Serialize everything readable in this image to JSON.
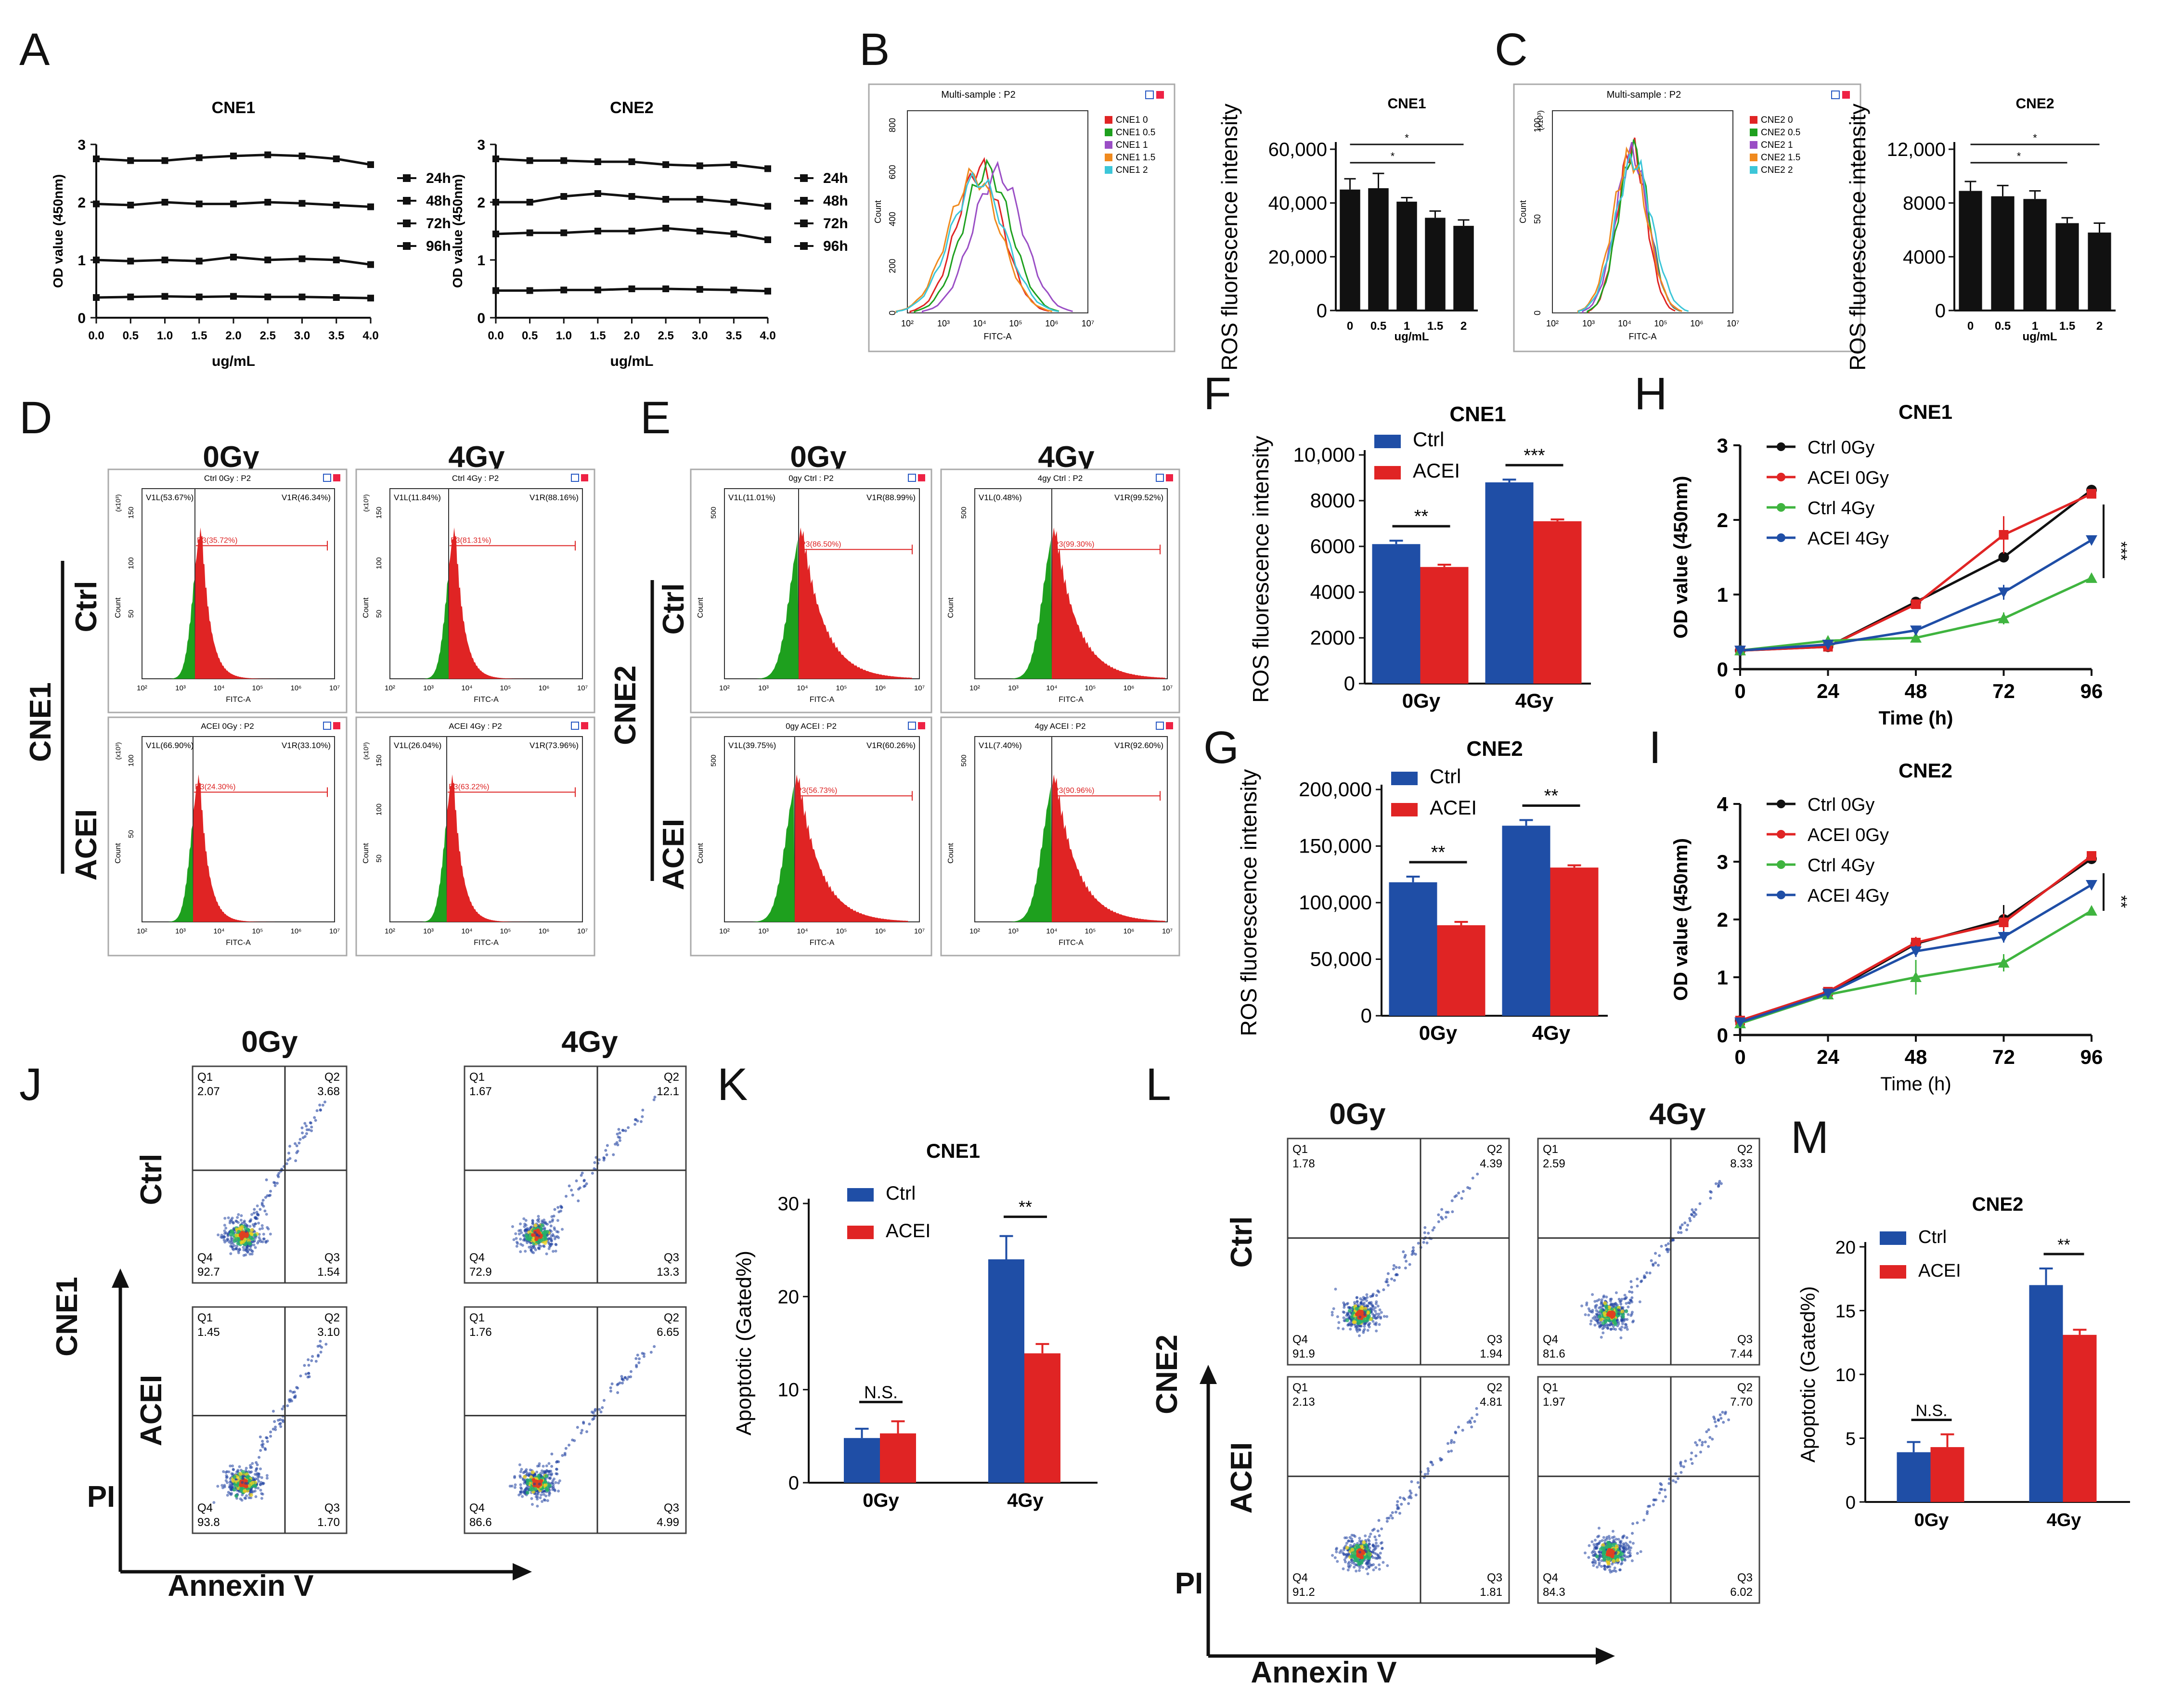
{
  "panel_letters": [
    "A",
    "B",
    "C",
    "D",
    "E",
    "F",
    "G",
    "H",
    "I",
    "J",
    "K",
    "L",
    "M"
  ],
  "colors": {
    "ctrl": "#1f4ea6",
    "acei": "#e02424",
    "gfp": "#1ea01e",
    "dens": "#1e3fa0"
  },
  "a": {
    "xvals": [
      0.0,
      0.5,
      1.0,
      1.5,
      2.0,
      2.5,
      3.0,
      3.5,
      4.0
    ],
    "xticks": [
      "0.0",
      "0.5",
      "1.0",
      "1.5",
      "2.0",
      "2.5",
      "3.0",
      "3.5",
      "4.0"
    ],
    "yticks": [
      "0",
      "1",
      "2",
      "3"
    ],
    "xlabel": "ug/mL",
    "ylabel": "OD value (450nm)",
    "legend": [
      "24h",
      "48h",
      "72h",
      "96h"
    ],
    "titles": [
      "CNE1",
      "CNE2"
    ]
  },
  "bc": {
    "hist_title": "Multi-sample : P2",
    "hist_x": "FITC-A",
    "hist_y": "Count",
    "hist_xt": [
      "10²",
      "10³",
      "10⁴",
      "10⁵",
      "10⁶",
      "10⁷"
    ],
    "b_legend": [
      "CNE1 0",
      "CNE1 0.5",
      "CNE1 1",
      "CNE1 1.5",
      "CNE1 2"
    ],
    "c_legend": [
      "CNE2 0",
      "CNE2 0.5",
      "CNE2 1",
      "CNE2 1.5",
      "CNE2 2"
    ],
    "b_hist_y": [
      "800",
      "600",
      "400",
      "200",
      "0"
    ],
    "c_hist_y": [
      "100",
      "50",
      "0"
    ],
    "c_mult": "(x10³)",
    "bar_ylabel": "ROS fluorescence intensity",
    "bar_xlabel": "ug/mL",
    "bar_x": [
      "0",
      "0.5",
      "1",
      "1.5",
      "2"
    ]
  },
  "de": {
    "cols": [
      "0Gy",
      "4Gy"
    ],
    "rows": [
      "Ctrl",
      "ACEI"
    ],
    "cell_d": "CNE1",
    "cell_e": "CNE2",
    "x_ticks": [
      "10²",
      "10³",
      "10⁴",
      "10⁵",
      "10⁶",
      "10⁷"
    ],
    "xlab": "FITC-A",
    "ylab": "Count",
    "d_panels": [
      {
        "title": "Ctrl 0Gy : P2",
        "v1l": "V1L(53.67%)",
        "v1r": "V1R(46.34%)",
        "p3": "P3(35.72%)",
        "yt": [
          "150",
          "100",
          "50"
        ],
        "mult": "(x10³)"
      },
      {
        "title": "Ctrl 4Gy : P2",
        "v1l": "V1L(11.84%)",
        "v1r": "V1R(88.16%)",
        "p3": "P3(81.31%)",
        "yt": [
          "150",
          "100",
          "50"
        ],
        "mult": "(x10³)"
      },
      {
        "title": "ACEI 0Gy : P2",
        "v1l": "V1L(66.90%)",
        "v1r": "V1R(33.10%)",
        "p3": "P3(24.30%)",
        "yt": [
          "100",
          "50"
        ],
        "mult": "(x10³)"
      },
      {
        "title": "ACEI 4Gy : P2",
        "v1l": "V1L(26.04%)",
        "v1r": "V1R(73.96%)",
        "p3": "P3(63.22%)",
        "yt": [
          "150",
          "100",
          "50"
        ],
        "mult": "(x10³)"
      }
    ],
    "e_panels": [
      {
        "title": "0gy Ctrl : P2",
        "v1l": "V1L(11.01%)",
        "v1r": "V1R(88.99%)",
        "p3": "P3(86.50%)",
        "yt": [
          "500"
        ],
        "mult": ""
      },
      {
        "title": "4gy Ctrl : P2",
        "v1l": "V1L(0.48%)",
        "v1r": "V1R(99.52%)",
        "p3": "P3(99.30%)",
        "yt": [
          "500"
        ],
        "mult": ""
      },
      {
        "title": "0gy ACEI : P2",
        "v1l": "V1L(39.75%)",
        "v1r": "V1R(60.26%)",
        "p3": "P3(56.73%)",
        "yt": [
          "500"
        ],
        "mult": ""
      },
      {
        "title": "4gy ACEI : P2",
        "v1l": "V1L(7.40%)",
        "v1r": "V1R(92.60%)",
        "p3": "P3(90.96%)",
        "yt": [
          "500"
        ],
        "mult": ""
      }
    ]
  },
  "fg": {
    "legend": [
      "Ctrl",
      "ACEI"
    ],
    "xcat": [
      "0Gy",
      "4Gy"
    ],
    "ylabel": "ROS fluorescence intensity"
  },
  "hi": {
    "legend": [
      "Ctrl 0Gy",
      "ACEI 0Gy",
      "Ctrl 4Gy",
      "ACEI 4Gy"
    ],
    "xticks": [
      "0",
      "24",
      "48",
      "72",
      "96"
    ],
    "xlabel": "Time (h)",
    "ylabel": "OD value (450nm)"
  },
  "jl": {
    "cols": [
      "0Gy",
      "4Gy"
    ],
    "rows": [
      "Ctrl",
      "ACEI"
    ],
    "cell_j": "CNE1",
    "cell_l": "CNE2",
    "axis_x": "Annexin V",
    "axis_y": "PI",
    "j_quads": [
      {
        "q1": "Q1",
        "q1v": "2.07",
        "q2": "Q2",
        "q2v": "3.68",
        "q3": "Q3",
        "q3v": "1.54",
        "q4": "Q4",
        "q4v": "92.7"
      },
      {
        "q1": "Q1",
        "q1v": "1.67",
        "q2": "Q2",
        "q2v": "12.1",
        "q3": "Q3",
        "q3v": "13.3",
        "q4": "Q4",
        "q4v": "72.9"
      },
      {
        "q1": "Q1",
        "q1v": "1.45",
        "q2": "Q2",
        "q2v": "3.10",
        "q3": "Q3",
        "q3v": "1.70",
        "q4": "Q4",
        "q4v": "93.8"
      },
      {
        "q1": "Q1",
        "q1v": "1.76",
        "q2": "Q2",
        "q2v": "6.65",
        "q3": "Q3",
        "q3v": "4.99",
        "q4": "Q4",
        "q4v": "86.6"
      }
    ],
    "l_quads": [
      {
        "q1": "Q1",
        "q1v": "1.78",
        "q2": "Q2",
        "q2v": "4.39",
        "q3": "Q3",
        "q3v": "1.94",
        "q4": "Q4",
        "q4v": "91.9"
      },
      {
        "q1": "Q1",
        "q1v": "2.59",
        "q2": "Q2",
        "q2v": "8.33",
        "q3": "Q3",
        "q3v": "7.44",
        "q4": "Q4",
        "q4v": "81.6"
      },
      {
        "q1": "Q1",
        "q1v": "2.13",
        "q2": "Q2",
        "q2v": "4.81",
        "q3": "Q3",
        "q3v": "1.81",
        "q4": "Q4",
        "q4v": "91.2"
      },
      {
        "q1": "Q1",
        "q1v": "1.97",
        "q2": "Q2",
        "q2v": "7.70",
        "q3": "Q3",
        "q3v": "6.02",
        "q4": "Q4",
        "q4v": "84.3"
      }
    ]
  },
  "km": {
    "legend": [
      "Ctrl",
      "ACEI"
    ],
    "xcat": [
      "0Gy",
      "4Gy"
    ],
    "ylabel": "Apoptotic (Gated%)",
    "ns": "N.S."
  },
  "chart_data": [
    {
      "id": "A-CNE1",
      "type": "line",
      "title": "CNE1",
      "xlabel": "ug/mL",
      "ylabel": "OD value (450nm)",
      "xlim": [
        0,
        4
      ],
      "ylim": [
        0,
        3
      ],
      "x": [
        0.0,
        0.5,
        1.0,
        1.5,
        2.0,
        2.5,
        3.0,
        3.5,
        4.0
      ],
      "series": [
        {
          "name": "24h",
          "values": [
            0.35,
            0.36,
            0.37,
            0.36,
            0.37,
            0.36,
            0.36,
            0.35,
            0.34
          ]
        },
        {
          "name": "48h",
          "values": [
            1.0,
            0.98,
            1.0,
            0.98,
            1.05,
            1.0,
            1.02,
            1.0,
            0.92
          ]
        },
        {
          "name": "72h",
          "values": [
            1.97,
            1.95,
            2.0,
            1.97,
            1.97,
            2.0,
            1.98,
            1.95,
            1.92
          ]
        },
        {
          "name": "96h",
          "values": [
            2.75,
            2.72,
            2.72,
            2.77,
            2.8,
            2.82,
            2.8,
            2.75,
            2.65
          ]
        }
      ]
    },
    {
      "id": "A-CNE2",
      "type": "line",
      "title": "CNE2",
      "xlabel": "ug/mL",
      "ylabel": "OD value (450nm)",
      "xlim": [
        0,
        4
      ],
      "ylim": [
        0,
        3
      ],
      "x": [
        0.0,
        0.5,
        1.0,
        1.5,
        2.0,
        2.5,
        3.0,
        3.5,
        4.0
      ],
      "series": [
        {
          "name": "24h",
          "values": [
            0.47,
            0.47,
            0.48,
            0.48,
            0.5,
            0.5,
            0.49,
            0.48,
            0.46
          ]
        },
        {
          "name": "48h",
          "values": [
            1.45,
            1.47,
            1.47,
            1.5,
            1.5,
            1.55,
            1.5,
            1.45,
            1.35
          ]
        },
        {
          "name": "72h",
          "values": [
            2.0,
            2.0,
            2.1,
            2.15,
            2.1,
            2.05,
            2.05,
            2.0,
            1.93
          ]
        },
        {
          "name": "96h",
          "values": [
            2.75,
            2.72,
            2.72,
            2.7,
            2.7,
            2.65,
            2.63,
            2.65,
            2.58
          ]
        }
      ]
    },
    {
      "id": "B-bar",
      "type": "bar",
      "title": "CNE1",
      "ylabel": "ROS fluorescence intensity",
      "xlabel": "ug/mL",
      "ylim": [
        0,
        60000
      ],
      "yticks": [
        "0",
        "20,000",
        "40,000",
        "60,000"
      ],
      "categories": [
        "0",
        "0.5",
        "1",
        "1.5",
        "2"
      ],
      "values": [
        45000,
        45500,
        40500,
        34500,
        31500
      ],
      "errors": [
        4000,
        5500,
        1500,
        2500,
        2200
      ],
      "sig": [
        {
          "from": 0,
          "to": 4,
          "label": "*"
        },
        {
          "from": 0,
          "to": 3,
          "label": "*"
        }
      ]
    },
    {
      "id": "C-bar",
      "type": "bar",
      "title": "CNE2",
      "ylabel": "ROS fluorescence intensity",
      "xlabel": "ug/mL",
      "ylim": [
        0,
        12000
      ],
      "yticks": [
        "0",
        "4000",
        "8000",
        "12,000"
      ],
      "categories": [
        "0",
        "0.5",
        "1",
        "1.5",
        "2"
      ],
      "values": [
        8900,
        8500,
        8300,
        6500,
        5800
      ],
      "errors": [
        700,
        800,
        600,
        400,
        700
      ],
      "sig": [
        {
          "from": 0,
          "to": 4,
          "label": "*"
        },
        {
          "from": 0,
          "to": 3,
          "label": "*"
        }
      ]
    },
    {
      "id": "F",
      "type": "bar",
      "title": "CNE1",
      "ylabel": "ROS fluorescence intensity",
      "ylim": [
        0,
        10000
      ],
      "yticks": [
        "0",
        "2000",
        "4000",
        "6000",
        "8000",
        "10,000"
      ],
      "categories": [
        "0Gy",
        "4Gy"
      ],
      "series": [
        {
          "name": "Ctrl",
          "values": [
            6100,
            8800
          ],
          "errors": [
            150,
            120
          ]
        },
        {
          "name": "ACEI",
          "values": [
            5100,
            7100
          ],
          "errors": [
            100,
            80
          ]
        }
      ],
      "sig": [
        "**",
        "***"
      ]
    },
    {
      "id": "G",
      "type": "bar",
      "title": "CNE2",
      "ylabel": "ROS fluorescence intensity",
      "ylim": [
        0,
        200000
      ],
      "yticks": [
        "0",
        "50,000",
        "100,000",
        "150,000",
        "200,000"
      ],
      "categories": [
        "0Gy",
        "4Gy"
      ],
      "series": [
        {
          "name": "Ctrl",
          "values": [
            118000,
            168000
          ],
          "errors": [
            5000,
            5000
          ]
        },
        {
          "name": "ACEI",
          "values": [
            80000,
            131000
          ],
          "errors": [
            3000,
            2000
          ]
        }
      ],
      "sig": [
        "**",
        "**"
      ]
    },
    {
      "id": "H",
      "type": "line",
      "title": "CNE1",
      "xlabel": "Time (h)",
      "ylabel": "OD value (450nm)",
      "xlim": [
        0,
        96
      ],
      "ylim": [
        0,
        3
      ],
      "yticks": [
        "0",
        "1",
        "2",
        "3"
      ],
      "x": [
        0,
        24,
        48,
        72,
        96
      ],
      "series": [
        {
          "name": "Ctrl 0Gy",
          "values": [
            0.25,
            0.3,
            0.9,
            1.5,
            2.4
          ],
          "errors": [
            0.03,
            0.03,
            0.05,
            0.06,
            0.04
          ]
        },
        {
          "name": "ACEI 0Gy",
          "values": [
            0.25,
            0.3,
            0.87,
            1.8,
            2.35
          ],
          "errors": [
            0.03,
            0.03,
            0.05,
            0.25,
            0.05
          ]
        },
        {
          "name": "Ctrl 4Gy",
          "values": [
            0.25,
            0.38,
            0.42,
            0.68,
            1.22
          ],
          "errors": [
            0.03,
            0.04,
            0.04,
            0.08,
            0.04
          ]
        },
        {
          "name": "ACEI 4Gy",
          "values": [
            0.25,
            0.33,
            0.52,
            1.03,
            1.73
          ],
          "errors": [
            0.03,
            0.03,
            0.04,
            0.1,
            0.04
          ]
        }
      ],
      "sig": "***"
    },
    {
      "id": "I",
      "type": "line",
      "title": "CNE2",
      "xlabel": "Time (h)",
      "ylabel": "OD value (450nm)",
      "xlim": [
        0,
        96
      ],
      "ylim": [
        0,
        4
      ],
      "yticks": [
        "0",
        "1",
        "2",
        "3",
        "4"
      ],
      "x": [
        0,
        24,
        48,
        72,
        96
      ],
      "series": [
        {
          "name": "Ctrl 0Gy",
          "values": [
            0.25,
            0.72,
            1.58,
            2.0,
            3.05
          ],
          "errors": [
            0.04,
            0.05,
            0.1,
            0.25,
            0.06
          ]
        },
        {
          "name": "ACEI 0Gy",
          "values": [
            0.25,
            0.75,
            1.6,
            1.95,
            3.1
          ],
          "errors": [
            0.04,
            0.05,
            0.1,
            0.15,
            0.06
          ]
        },
        {
          "name": "Ctrl 4Gy",
          "values": [
            0.2,
            0.7,
            1.0,
            1.25,
            2.15
          ],
          "errors": [
            0.04,
            0.08,
            0.3,
            0.15,
            0.08
          ]
        },
        {
          "name": "ACEI 4Gy",
          "values": [
            0.22,
            0.72,
            1.45,
            1.7,
            2.6
          ],
          "errors": [
            0.04,
            0.05,
            0.1,
            0.1,
            0.06
          ]
        }
      ],
      "sig": "**"
    },
    {
      "id": "K",
      "type": "bar",
      "title": "CNE1",
      "ylabel": "Apoptotic (Gated%)",
      "ylim": [
        0,
        30
      ],
      "yticks": [
        "0",
        "10",
        "20",
        "30"
      ],
      "categories": [
        "0Gy",
        "4Gy"
      ],
      "series": [
        {
          "name": "Ctrl",
          "values": [
            4.8,
            24.0
          ],
          "errors": [
            1.0,
            2.5
          ]
        },
        {
          "name": "ACEI",
          "values": [
            5.3,
            13.9
          ],
          "errors": [
            1.3,
            1.0
          ]
        }
      ],
      "sig": [
        "N.S.",
        "**"
      ]
    },
    {
      "id": "M",
      "type": "bar",
      "title": "CNE2",
      "ylabel": "Apoptotic (Gated%)",
      "ylim": [
        0,
        20
      ],
      "yticks": [
        "0",
        "5",
        "10",
        "15",
        "20"
      ],
      "categories": [
        "0Gy",
        "4Gy"
      ],
      "series": [
        {
          "name": "Ctrl",
          "values": [
            3.9,
            17.0
          ],
          "errors": [
            0.8,
            1.3
          ]
        },
        {
          "name": "ACEI",
          "values": [
            4.3,
            13.1
          ],
          "errors": [
            1.0,
            0.4
          ]
        }
      ],
      "sig": [
        "N.S.",
        "**"
      ]
    }
  ]
}
